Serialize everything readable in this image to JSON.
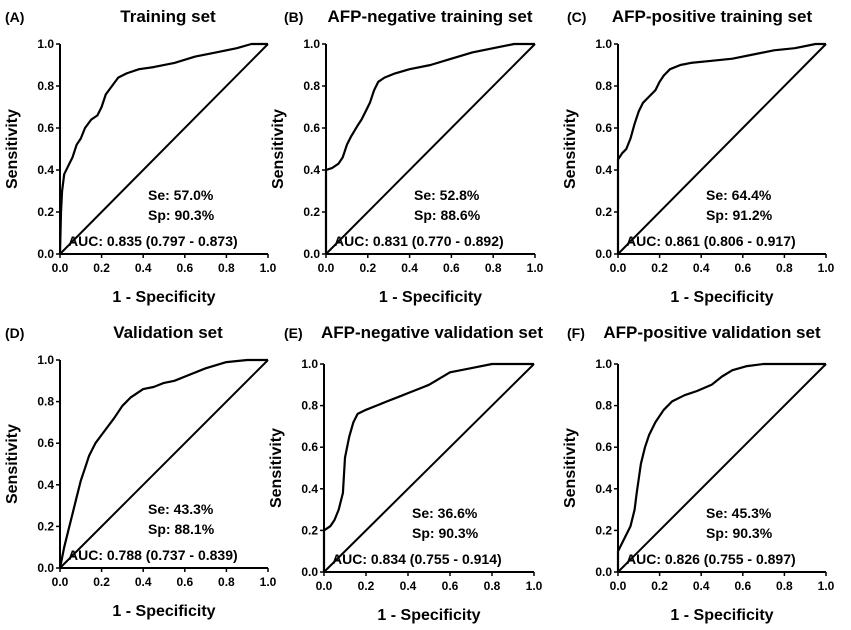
{
  "chart_data": [
    {
      "type": "line",
      "panel": "(A)",
      "title": "Training set",
      "xlabel": "1 - Specificity",
      "ylabel": "Sensitivity",
      "xlim": [
        0,
        1
      ],
      "ylim": [
        0,
        1
      ],
      "xticks": [
        "0.0",
        "0.2",
        "0.4",
        "0.6",
        "0.8",
        "1.0"
      ],
      "yticks": [
        "0.0",
        "0.2",
        "0.4",
        "0.6",
        "0.8",
        "1.0"
      ],
      "stats": [
        "Se: 57.0%",
        "Sp: 90.3%",
        "AUC: 0.835 (0.797 - 0.873)"
      ],
      "roc": [
        [
          0,
          0
        ],
        [
          0.005,
          0.2
        ],
        [
          0.01,
          0.3
        ],
        [
          0.02,
          0.38
        ],
        [
          0.04,
          0.42
        ],
        [
          0.06,
          0.46
        ],
        [
          0.08,
          0.52
        ],
        [
          0.1,
          0.55
        ],
        [
          0.12,
          0.6
        ],
        [
          0.15,
          0.64
        ],
        [
          0.18,
          0.66
        ],
        [
          0.2,
          0.7
        ],
        [
          0.22,
          0.76
        ],
        [
          0.25,
          0.8
        ],
        [
          0.28,
          0.84
        ],
        [
          0.32,
          0.86
        ],
        [
          0.38,
          0.88
        ],
        [
          0.45,
          0.89
        ],
        [
          0.55,
          0.91
        ],
        [
          0.65,
          0.94
        ],
        [
          0.75,
          0.96
        ],
        [
          0.85,
          0.98
        ],
        [
          0.92,
          1.0
        ],
        [
          1.0,
          1.0
        ]
      ]
    },
    {
      "type": "line",
      "panel": "(B)",
      "title": "AFP-negative training set",
      "xlabel": "1 - Specificity",
      "ylabel": "Sensitivity",
      "xlim": [
        0,
        1
      ],
      "ylim": [
        0,
        1
      ],
      "xticks": [
        "0.0",
        "0.2",
        "0.4",
        "0.6",
        "0.8",
        "1.0"
      ],
      "yticks": [
        "0.0",
        "0.2",
        "0.4",
        "0.6",
        "0.8",
        "1.0"
      ],
      "stats": [
        "Se: 52.8%",
        "Sp: 88.6%",
        "AUC: 0.831 (0.770 - 0.892)"
      ],
      "roc": [
        [
          0,
          0
        ],
        [
          0,
          0.4
        ],
        [
          0.03,
          0.41
        ],
        [
          0.06,
          0.43
        ],
        [
          0.08,
          0.46
        ],
        [
          0.1,
          0.52
        ],
        [
          0.12,
          0.56
        ],
        [
          0.15,
          0.61
        ],
        [
          0.17,
          0.64
        ],
        [
          0.19,
          0.68
        ],
        [
          0.21,
          0.72
        ],
        [
          0.23,
          0.78
        ],
        [
          0.25,
          0.82
        ],
        [
          0.28,
          0.84
        ],
        [
          0.33,
          0.86
        ],
        [
          0.4,
          0.88
        ],
        [
          0.5,
          0.9
        ],
        [
          0.6,
          0.93
        ],
        [
          0.7,
          0.96
        ],
        [
          0.8,
          0.98
        ],
        [
          0.9,
          1.0
        ],
        [
          1.0,
          1.0
        ]
      ]
    },
    {
      "type": "line",
      "panel": "(C)",
      "title": "AFP-positive training set",
      "xlabel": "1 - Specificity",
      "ylabel": "Sensitivity",
      "xlim": [
        0,
        1
      ],
      "ylim": [
        0,
        1
      ],
      "xticks": [
        "0.0",
        "0.2",
        "0.4",
        "0.6",
        "0.8",
        "1.0"
      ],
      "yticks": [
        "0.0",
        "0.2",
        "0.4",
        "0.6",
        "0.8",
        "1.0"
      ],
      "stats": [
        "Se: 64.4%",
        "Sp: 91.2%",
        "AUC: 0.861 (0.806 - 0.917)"
      ],
      "roc": [
        [
          0,
          0
        ],
        [
          0,
          0.45
        ],
        [
          0.02,
          0.48
        ],
        [
          0.04,
          0.5
        ],
        [
          0.06,
          0.55
        ],
        [
          0.08,
          0.62
        ],
        [
          0.1,
          0.68
        ],
        [
          0.12,
          0.72
        ],
        [
          0.15,
          0.75
        ],
        [
          0.18,
          0.78
        ],
        [
          0.2,
          0.82
        ],
        [
          0.22,
          0.85
        ],
        [
          0.25,
          0.88
        ],
        [
          0.3,
          0.9
        ],
        [
          0.35,
          0.91
        ],
        [
          0.45,
          0.92
        ],
        [
          0.55,
          0.93
        ],
        [
          0.65,
          0.95
        ],
        [
          0.75,
          0.97
        ],
        [
          0.85,
          0.98
        ],
        [
          0.95,
          1.0
        ],
        [
          1.0,
          1.0
        ]
      ]
    },
    {
      "type": "line",
      "panel": "(D)",
      "title": "Validation set",
      "xlabel": "1 - Specificity",
      "ylabel": "Sensitivity",
      "xlim": [
        0,
        1
      ],
      "ylim": [
        0,
        1
      ],
      "xticks": [
        "0.0",
        "0.2",
        "0.4",
        "0.6",
        "0.8",
        "1.0"
      ],
      "yticks": [
        "0.0",
        "0.2",
        "0.4",
        "0.6",
        "0.8",
        "1.0"
      ],
      "stats": [
        "Se: 43.3%",
        "Sp: 88.1%",
        "AUC: 0.788 (0.737 - 0.839)"
      ],
      "roc": [
        [
          0,
          0
        ],
        [
          0.01,
          0.05
        ],
        [
          0.02,
          0.1
        ],
        [
          0.04,
          0.18
        ],
        [
          0.06,
          0.26
        ],
        [
          0.08,
          0.34
        ],
        [
          0.1,
          0.42
        ],
        [
          0.12,
          0.48
        ],
        [
          0.14,
          0.54
        ],
        [
          0.17,
          0.6
        ],
        [
          0.2,
          0.64
        ],
        [
          0.23,
          0.68
        ],
        [
          0.26,
          0.72
        ],
        [
          0.3,
          0.78
        ],
        [
          0.34,
          0.82
        ],
        [
          0.4,
          0.86
        ],
        [
          0.45,
          0.87
        ],
        [
          0.5,
          0.89
        ],
        [
          0.55,
          0.9
        ],
        [
          0.6,
          0.92
        ],
        [
          0.7,
          0.96
        ],
        [
          0.8,
          0.99
        ],
        [
          0.9,
          1.0
        ],
        [
          1.0,
          1.0
        ]
      ]
    },
    {
      "type": "line",
      "panel": "(E)",
      "title": "AFP-negative validation set",
      "xlabel": "1 - Specificity",
      "ylabel": "Sensitivity",
      "xlim": [
        0,
        1
      ],
      "ylim": [
        0,
        1
      ],
      "xticks": [
        "0.0",
        "0.2",
        "0.4",
        "0.6",
        "0.8",
        "1.0"
      ],
      "yticks": [
        "0.0",
        "0.2",
        "0.4",
        "0.6",
        "0.8",
        "1.0"
      ],
      "stats": [
        "Se: 36.6%",
        "Sp: 90.3%",
        "AUC: 0.834 (0.755 - 0.914)"
      ],
      "roc": [
        [
          0,
          0
        ],
        [
          0,
          0.2
        ],
        [
          0.03,
          0.22
        ],
        [
          0.05,
          0.25
        ],
        [
          0.07,
          0.3
        ],
        [
          0.09,
          0.38
        ],
        [
          0.1,
          0.55
        ],
        [
          0.11,
          0.6
        ],
        [
          0.12,
          0.65
        ],
        [
          0.14,
          0.72
        ],
        [
          0.16,
          0.76
        ],
        [
          0.2,
          0.78
        ],
        [
          0.25,
          0.8
        ],
        [
          0.3,
          0.82
        ],
        [
          0.35,
          0.84
        ],
        [
          0.4,
          0.86
        ],
        [
          0.45,
          0.88
        ],
        [
          0.5,
          0.9
        ],
        [
          0.55,
          0.93
        ],
        [
          0.6,
          0.96
        ],
        [
          0.7,
          0.98
        ],
        [
          0.8,
          1.0
        ],
        [
          1.0,
          1.0
        ]
      ]
    },
    {
      "type": "line",
      "panel": "(F)",
      "title": "AFP-positive validation set",
      "xlabel": "1 - Specificity",
      "ylabel": "Sensitivity",
      "xlim": [
        0,
        1
      ],
      "ylim": [
        0,
        1
      ],
      "xticks": [
        "0.0",
        "0.2",
        "0.4",
        "0.6",
        "0.8",
        "1.0"
      ],
      "yticks": [
        "0.0",
        "0.2",
        "0.4",
        "0.6",
        "0.8",
        "1.0"
      ],
      "stats": [
        "Se: 45.3%",
        "Sp: 90.3%",
        "AUC: 0.826 (0.755 - 0.897)"
      ],
      "roc": [
        [
          0,
          0
        ],
        [
          0,
          0.1
        ],
        [
          0.02,
          0.14
        ],
        [
          0.04,
          0.18
        ],
        [
          0.06,
          0.22
        ],
        [
          0.08,
          0.3
        ],
        [
          0.09,
          0.38
        ],
        [
          0.1,
          0.45
        ],
        [
          0.11,
          0.52
        ],
        [
          0.13,
          0.6
        ],
        [
          0.15,
          0.66
        ],
        [
          0.18,
          0.72
        ],
        [
          0.22,
          0.78
        ],
        [
          0.26,
          0.82
        ],
        [
          0.32,
          0.85
        ],
        [
          0.38,
          0.87
        ],
        [
          0.45,
          0.9
        ],
        [
          0.5,
          0.94
        ],
        [
          0.55,
          0.97
        ],
        [
          0.62,
          0.99
        ],
        [
          0.7,
          1.0
        ],
        [
          1.0,
          1.0
        ]
      ]
    }
  ]
}
